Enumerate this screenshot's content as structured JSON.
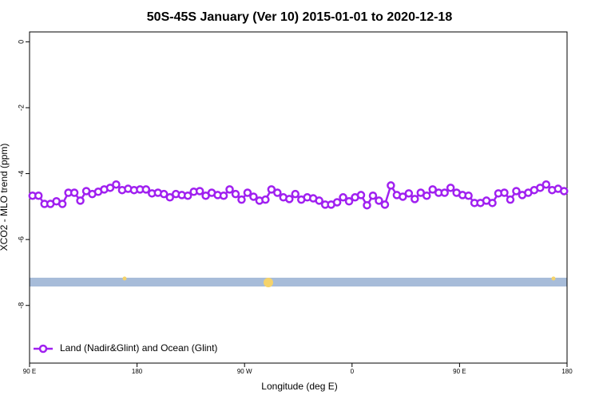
{
  "chart_data": {
    "type": "line",
    "title": "50S-45S January (Ver 10)   2015-01-01 to 2020-12-18",
    "x_label": "Longitude (deg E)",
    "y_label": "XCO2 - MLO trend (ppm)",
    "xlim": [
      90,
      540
    ],
    "xticks": [
      {
        "value": 90,
        "label": "90 E"
      },
      {
        "value": 180,
        "label": "180"
      },
      {
        "value": 270,
        "label": "90 W"
      },
      {
        "value": 360,
        "label": "0"
      },
      {
        "value": 450,
        "label": "90 E"
      },
      {
        "value": 540,
        "label": "180"
      }
    ],
    "ylim": [
      -9.75,
      0.3
    ],
    "yticks": [
      0,
      -2,
      -4,
      -6,
      -8
    ],
    "legend": "bottom-left",
    "x": [
      92.5,
      97.5,
      102.5,
      107.5,
      112.5,
      117.5,
      122.5,
      127.5,
      132.5,
      137.5,
      142.5,
      147.5,
      152.5,
      157.5,
      162.5,
      167.5,
      172.5,
      177.5,
      182.5,
      187.5,
      192.5,
      197.5,
      202.5,
      207.5,
      212.5,
      217.5,
      222.5,
      227.5,
      232.5,
      237.5,
      242.5,
      247.5,
      252.5,
      257.5,
      262.5,
      267.5,
      272.5,
      277.5,
      282.5,
      287.5,
      292.5,
      297.5,
      302.5,
      307.5,
      312.5,
      317.5,
      322.5,
      327.5,
      332.5,
      337.5,
      342.5,
      347.5,
      352.5,
      357.5,
      362.5,
      367.5,
      372.5,
      377.5,
      382.5,
      387.5,
      392.5,
      397.5,
      402.5,
      407.5,
      412.5,
      417.5,
      422.5,
      427.5,
      432.5,
      437.5,
      442.5,
      447.5,
      452.5,
      457.5,
      462.5,
      467.5,
      472.5,
      477.5,
      482.5,
      487.5,
      492.5,
      497.5,
      502.5,
      507.5,
      512.5,
      517.5,
      522.5,
      527.5,
      532.5,
      537.5
    ],
    "series": [
      {
        "name": "Land (Nadir&Glint) and Ocean (Glint)",
        "color": "#a020f0",
        "values": [
          -4.67,
          -4.67,
          -4.92,
          -4.92,
          -4.84,
          -4.92,
          -4.58,
          -4.58,
          -4.82,
          -4.53,
          -4.62,
          -4.55,
          -4.48,
          -4.43,
          -4.33,
          -4.5,
          -4.46,
          -4.5,
          -4.48,
          -4.48,
          -4.6,
          -4.58,
          -4.62,
          -4.72,
          -4.62,
          -4.65,
          -4.67,
          -4.55,
          -4.53,
          -4.67,
          -4.58,
          -4.65,
          -4.67,
          -4.48,
          -4.62,
          -4.79,
          -4.58,
          -4.7,
          -4.82,
          -4.79,
          -4.48,
          -4.58,
          -4.72,
          -4.77,
          -4.62,
          -4.79,
          -4.72,
          -4.75,
          -4.82,
          -4.94,
          -4.94,
          -4.87,
          -4.72,
          -4.84,
          -4.72,
          -4.65,
          -4.96,
          -4.67,
          -4.82,
          -4.94,
          -4.36,
          -4.65,
          -4.7,
          -4.6,
          -4.77,
          -4.58,
          -4.67,
          -4.48,
          -4.58,
          -4.58,
          -4.43,
          -4.58,
          -4.65,
          -4.67,
          -4.89,
          -4.89,
          -4.82,
          -4.89,
          -4.6,
          -4.58,
          -4.79,
          -4.53,
          -4.65,
          -4.58,
          -4.5,
          -4.43,
          -4.33,
          -4.5,
          -4.46,
          -4.53
        ]
      }
    ]
  }
}
